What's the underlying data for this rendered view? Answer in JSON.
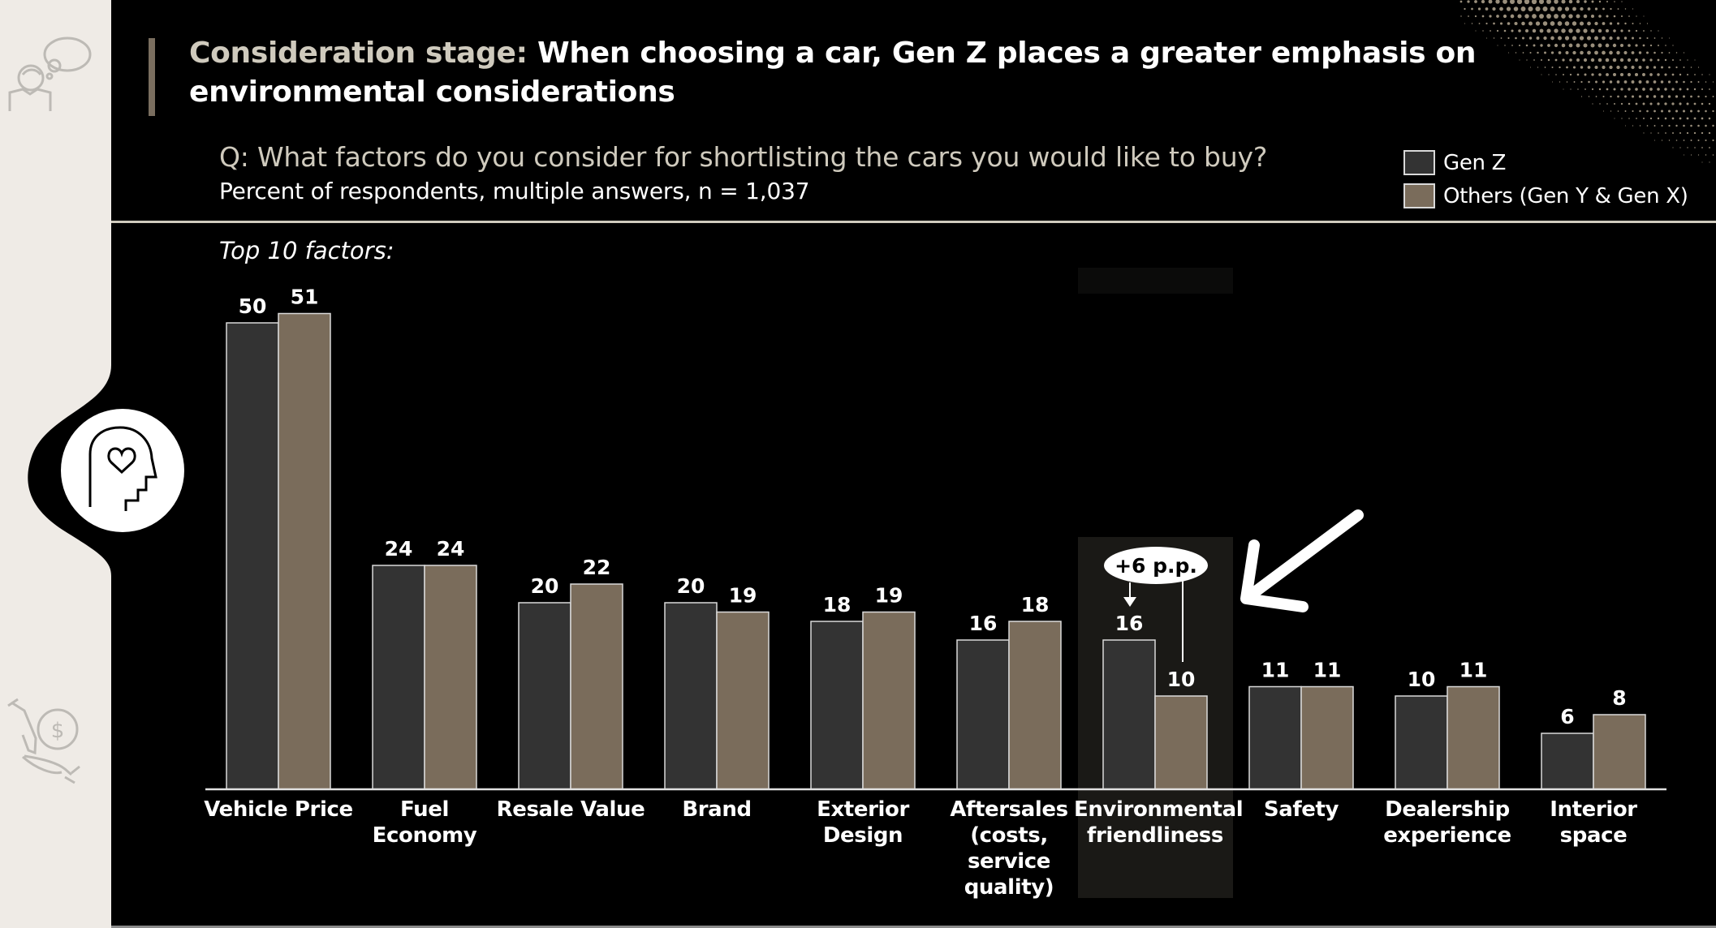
{
  "header": {
    "title_lead": "Consideration stage:",
    "title_rest": " When choosing a car, Gen Z places a greater emphasis on environmental considerations",
    "question": "Q: What factors do you consider for shortlisting the cars you would like to buy?",
    "subtitle": "Percent of respondents, multiple answers, n = 1,037"
  },
  "sidebar": {
    "icons": [
      "person-thought-icon",
      "head-heart-icon",
      "hand-money-icon"
    ]
  },
  "colors": {
    "gen_z": "#333333",
    "others": "#7a6c5b",
    "sidebar_bg": "#efebe6",
    "accent": "#cfcabd",
    "highlight": "#1a1916"
  },
  "chart_data": {
    "type": "bar",
    "title": "Top 10 factors:",
    "xlabel": "",
    "ylabel": "Percent of respondents",
    "ylim": [
      0,
      55
    ],
    "grid": false,
    "legend_position": "top-right",
    "categories": [
      "Vehicle Price",
      "Fuel Economy",
      "Resale Value",
      "Brand",
      "Exterior Design",
      "Aftersales (costs, service quality)",
      "Environmental friendliness",
      "Safety",
      "Dealership experience",
      "Interior space"
    ],
    "category_lines": [
      [
        "Vehicle Price"
      ],
      [
        "Fuel",
        "Economy"
      ],
      [
        "Resale Value"
      ],
      [
        "Brand"
      ],
      [
        "Exterior",
        "Design"
      ],
      [
        "Aftersales",
        "(costs,",
        "service",
        "quality)"
      ],
      [
        "Environmental",
        "friendliness"
      ],
      [
        "Safety"
      ],
      [
        "Dealership",
        "experience"
      ],
      [
        "Interior",
        "space"
      ]
    ],
    "series": [
      {
        "name": "Gen Z",
        "values": [
          50,
          24,
          20,
          20,
          18,
          16,
          16,
          11,
          10,
          6
        ]
      },
      {
        "name": "Others (Gen Y & Gen X)",
        "values": [
          51,
          24,
          22,
          19,
          19,
          18,
          10,
          11,
          11,
          8
        ]
      }
    ],
    "annotations": [
      {
        "category": "Environmental friendliness",
        "text": "+6 p.p.",
        "highlighted": true
      }
    ]
  }
}
